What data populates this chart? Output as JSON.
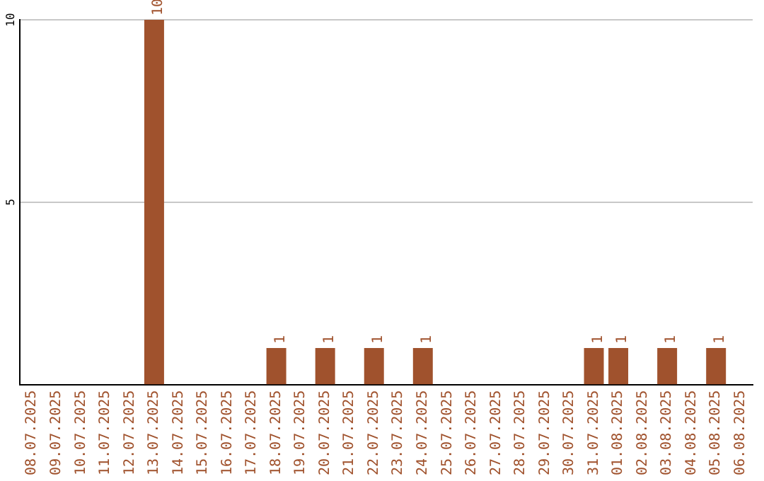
{
  "chart_data": {
    "type": "bar",
    "categories": [
      "08.07.2025",
      "09.07.2025",
      "10.07.2025",
      "11.07.2025",
      "12.07.2025",
      "13.07.2025",
      "14.07.2025",
      "15.07.2025",
      "16.07.2025",
      "17.07.2025",
      "18.07.2025",
      "19.07.2025",
      "20.07.2025",
      "21.07.2025",
      "22.07.2025",
      "23.07.2025",
      "24.07.2025",
      "25.07.2025",
      "26.07.2025",
      "27.07.2025",
      "28.07.2025",
      "29.07.2025",
      "30.07.2025",
      "31.07.2025",
      "01.08.2025",
      "02.08.2025",
      "03.08.2025",
      "04.08.2025",
      "05.08.2025",
      "06.08.2025"
    ],
    "values": [
      0,
      0,
      0,
      0,
      0,
      10,
      0,
      0,
      0,
      0,
      1,
      0,
      1,
      0,
      1,
      0,
      1,
      0,
      0,
      0,
      0,
      0,
      0,
      1,
      1,
      0,
      1,
      0,
      1,
      0
    ],
    "value_labels": [
      null,
      null,
      null,
      null,
      null,
      "10",
      null,
      null,
      null,
      null,
      "1",
      null,
      "1",
      null,
      "1",
      null,
      "1",
      null,
      null,
      null,
      null,
      null,
      null,
      "1",
      "1",
      null,
      "1",
      null,
      "1",
      null
    ],
    "color": "#a0522d",
    "ylim": [
      0,
      10
    ],
    "yticks": [
      5,
      10
    ],
    "grid": "y",
    "legend": false
  }
}
